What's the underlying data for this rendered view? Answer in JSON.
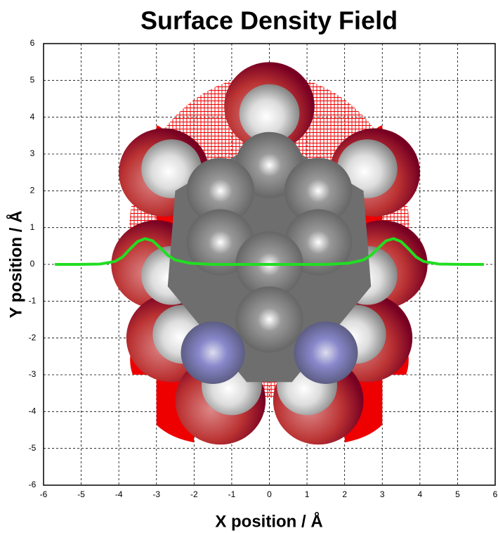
{
  "chart_data": {
    "type": "line",
    "title": "Surface Density Field",
    "x_label": "X position / Å",
    "y_label": "Y position / Å",
    "x": [
      -5.7,
      -5.1,
      -4.5,
      -4.1,
      -3.9,
      -3.7,
      -3.5,
      -3.3,
      -3.1,
      -2.9,
      -2.7,
      -2.5,
      -2.1,
      -1.5,
      0,
      1.5,
      2.1,
      2.5,
      2.7,
      2.9,
      3.1,
      3.3,
      3.5,
      3.7,
      3.9,
      4.1,
      4.5,
      5.1,
      5.7
    ],
    "series": [
      {
        "color": "#22dd22",
        "values": [
          0,
          0,
          0.01,
          0.08,
          0.2,
          0.42,
          0.62,
          0.7,
          0.64,
          0.45,
          0.25,
          0.12,
          0.03,
          0,
          0,
          0,
          0.03,
          0.12,
          0.25,
          0.45,
          0.64,
          0.7,
          0.62,
          0.42,
          0.2,
          0.08,
          0.01,
          0,
          0
        ]
      }
    ],
    "xlim": [
      -6,
      6
    ],
    "ylim": [
      -6,
      6
    ],
    "xticks": [
      -6,
      -5,
      -4,
      -3,
      -2,
      -1,
      0,
      1,
      2,
      3,
      4,
      5,
      6
    ],
    "yticks": [
      -6,
      -5,
      -4,
      -3,
      -2,
      -1,
      0,
      1,
      2,
      3,
      4,
      5,
      6
    ],
    "grid": true
  }
}
